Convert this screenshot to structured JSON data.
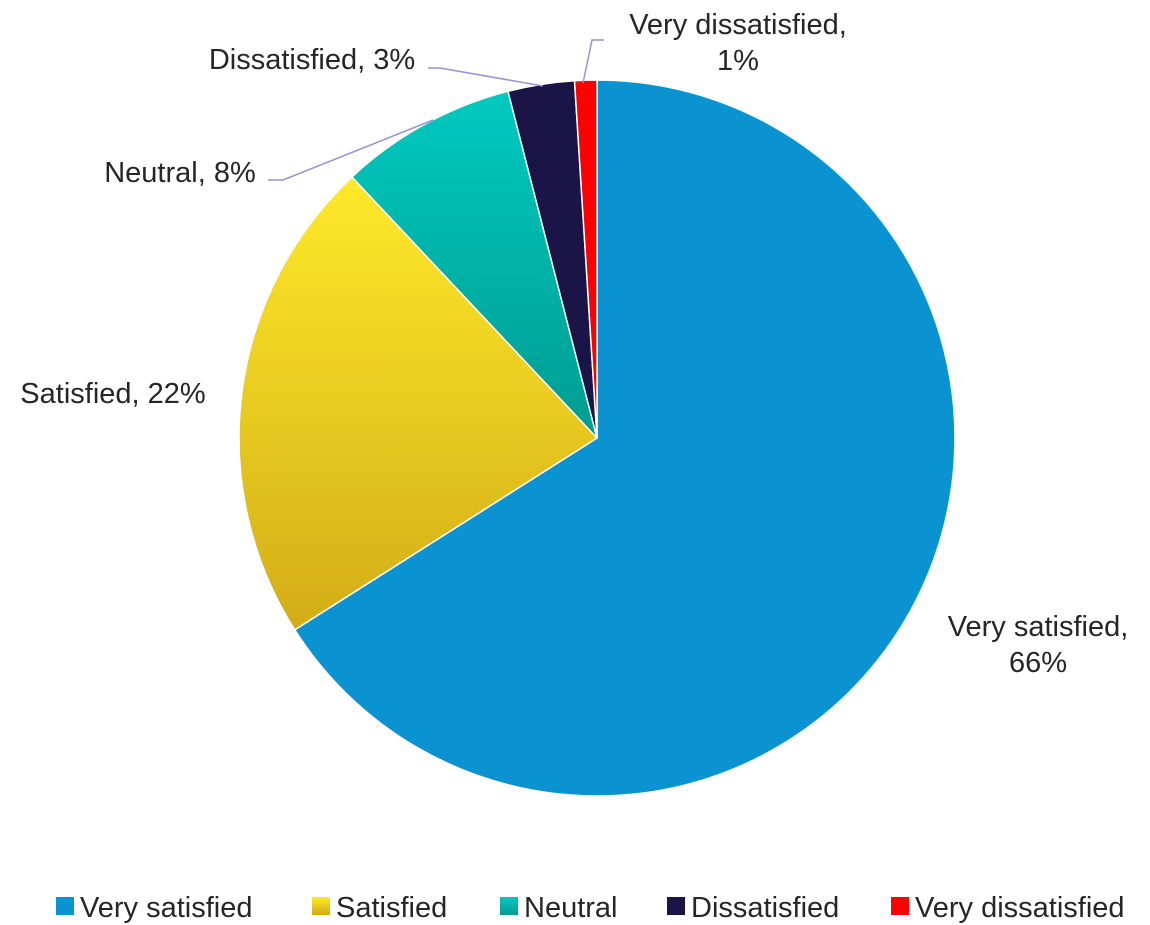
{
  "chart_data": {
    "type": "pie",
    "categories": [
      "Very satisfied",
      "Satisfied",
      "Neutral",
      "Dissatisfied",
      "Very dissatisfied"
    ],
    "values": [
      66,
      22,
      8,
      3,
      1
    ],
    "units": "%",
    "colors": [
      "#0b93d1",
      "#f3d81f",
      "#00b0a5",
      "#1a1447",
      "#ff0000"
    ],
    "data_labels": [
      [
        "Very satisfied,",
        "66%"
      ],
      [
        "Satisfied, 22%"
      ],
      [
        "Neutral, 8%"
      ],
      [
        "Dissatisfied, 3%"
      ],
      [
        "Very dissatisfied,",
        "1%"
      ]
    ],
    "legend": {
      "position": "bottom",
      "entries": [
        "Very satisfied",
        "Satisfied",
        "Neutral",
        "Dissatisfied",
        "Very dissatisfied"
      ]
    }
  }
}
